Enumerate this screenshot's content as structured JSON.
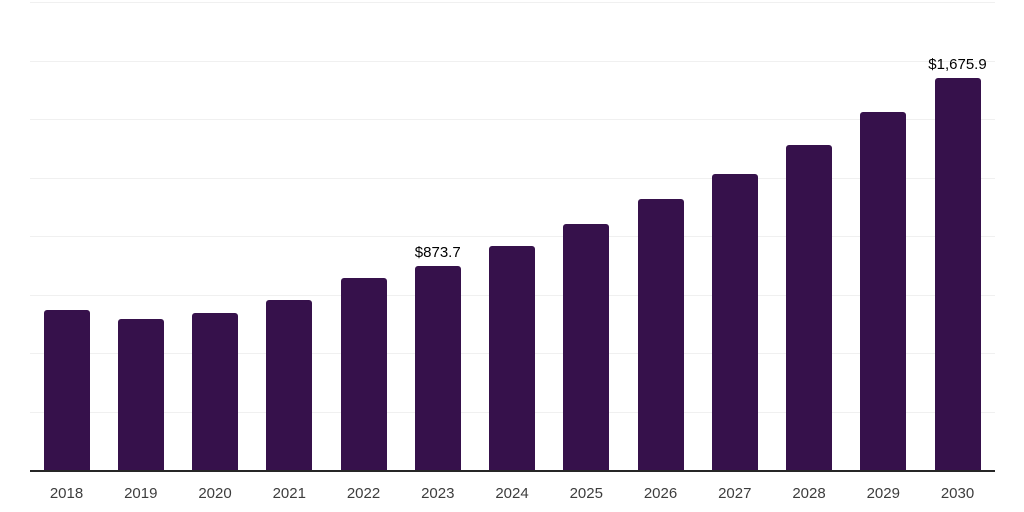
{
  "chart_data": {
    "type": "bar",
    "title": "",
    "xlabel": "",
    "ylabel": "",
    "categories": [
      "2018",
      "2019",
      "2020",
      "2021",
      "2022",
      "2023",
      "2024",
      "2025",
      "2026",
      "2027",
      "2028",
      "2029",
      "2030"
    ],
    "values": [
      684,
      647,
      672,
      726,
      822,
      873.7,
      957,
      1052,
      1156,
      1265,
      1387,
      1531,
      1675.9
    ],
    "data_labels": [
      "",
      "",
      "",
      "",
      "",
      "$873.7",
      "",
      "",
      "",
      "",
      "",
      "",
      "$1,675.9"
    ],
    "ylim": [
      0,
      2000
    ],
    "gridline_step": 250,
    "grid": true,
    "legend": "none",
    "colors": {
      "bar": "#36114B",
      "axis": "#262626",
      "gridline": "#f0f0f0",
      "data_label": "#000000",
      "tick_label": "#3d3d3d"
    }
  }
}
